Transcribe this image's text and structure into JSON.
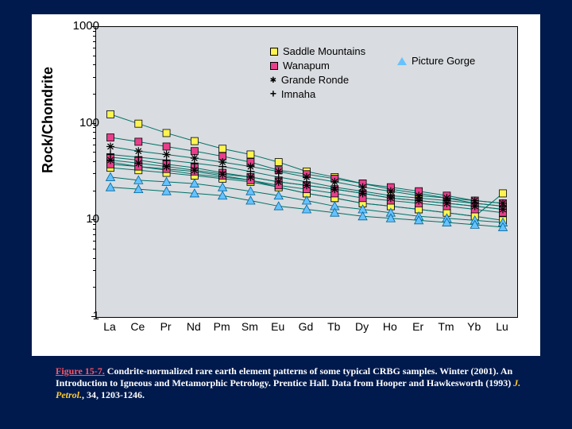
{
  "background_color": "#001a4d",
  "panel_background": "#ffffff",
  "plot_background": "#d9dce0",
  "chart": {
    "type": "line",
    "y_label": "Rock/Chondrite",
    "y_scale": "log",
    "y_ticks": [
      1,
      10,
      100,
      1000
    ],
    "x_categories": [
      "La",
      "Ce",
      "Pr",
      "Nd",
      "Pm",
      "Sm",
      "Eu",
      "Gd",
      "Tb",
      "Dy",
      "Ho",
      "Er",
      "Tm",
      "Yb",
      "Lu"
    ],
    "line_color": "#007066",
    "line_width": 1,
    "series": [
      {
        "name": "Saddle Mountains",
        "marker": "square",
        "color": "#fff44f",
        "stroke": "#000",
        "lines": [
          [
            125,
            100,
            80,
            66,
            55,
            48,
            40,
            32,
            28,
            24,
            21,
            19,
            17,
            15,
            14
          ],
          [
            40,
            36,
            33,
            30,
            28,
            26,
            22,
            19,
            17,
            15,
            14,
            13,
            12,
            11,
            19
          ],
          [
            35,
            33,
            31,
            29,
            27,
            25,
            22,
            19,
            17,
            15,
            14,
            13,
            12,
            11,
            10
          ]
        ]
      },
      {
        "name": "Wanapum",
        "marker": "square",
        "color": "#e83e8c",
        "stroke": "#000",
        "lines": [
          [
            72,
            65,
            58,
            52,
            46,
            40,
            33,
            30,
            27,
            24,
            22,
            20,
            18,
            16,
            15
          ],
          [
            45,
            42,
            38,
            35,
            31,
            28,
            25,
            23,
            21,
            19,
            17,
            16,
            15,
            14,
            13
          ],
          [
            38,
            36,
            34,
            32,
            29,
            26,
            23,
            21,
            19,
            17,
            16,
            15,
            14,
            13,
            12
          ]
        ]
      },
      {
        "name": "Grande Ronde",
        "marker": "star",
        "color": "#000000",
        "stroke": "#000",
        "lines": [
          [
            58,
            52,
            48,
            44,
            40,
            36,
            32,
            28,
            25,
            22,
            20,
            18,
            17,
            16,
            15
          ],
          [
            42,
            39,
            36,
            33,
            30,
            28,
            25,
            23,
            21,
            19,
            17,
            16,
            15,
            14,
            13
          ]
        ]
      },
      {
        "name": "Imnaha",
        "marker": "plus",
        "color": "#000000",
        "stroke": "#000",
        "lines": [
          [
            48,
            45,
            42,
            39,
            36,
            32,
            28,
            25,
            22,
            20,
            18,
            17,
            16,
            15,
            14
          ]
        ]
      },
      {
        "name": "Picture Gorge",
        "marker": "triangle",
        "color": "#66c2ff",
        "stroke": "#006699",
        "lines": [
          [
            28,
            26,
            25,
            24,
            22,
            20,
            18,
            16,
            14,
            13,
            12,
            11,
            10.5,
            10,
            9.5
          ],
          [
            22,
            21,
            20,
            19,
            18,
            16,
            14,
            13,
            12,
            11,
            10.5,
            10,
            9.5,
            9,
            8.5
          ]
        ]
      }
    ],
    "legend_font_size": 13,
    "axis_font_size": 15,
    "label_font_size": 18
  },
  "caption": {
    "fig_num": "Figure 15-7.",
    "body1": " Condrite-normalized rare earth element patterns of some typical CRBG samples. Winter (2001). An Introduction to Igneous and Metamorphic Petrology. Prentice Hall.  Data from Hooper and Hawkesworth (1993) ",
    "ref": "J. Petrol.",
    "body2": ", 34, 1203-1246."
  },
  "legend_labels": {
    "saddle": "Saddle Mountains",
    "wanapum": "Wanapum",
    "grande": "Grande Ronde",
    "imnaha": "Imnaha",
    "picture": "Picture Gorge"
  }
}
